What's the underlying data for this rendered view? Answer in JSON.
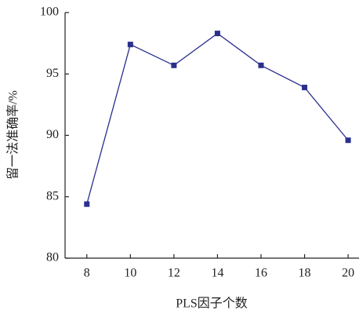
{
  "chart_data": {
    "type": "line",
    "x_label": "PLS因子个数",
    "y_label": "留一法准确率/%",
    "x": [
      8,
      10,
      12,
      14,
      16,
      18,
      20
    ],
    "series": [
      {
        "color": "#2a2f8c",
        "values": [
          84.4,
          97.4,
          95.7,
          98.3,
          95.7,
          93.9,
          89.6
        ]
      }
    ],
    "xlim": [
      7,
      20.5
    ],
    "xticks": [
      8,
      10,
      12,
      14,
      16,
      18,
      20
    ],
    "ylim": [
      80,
      100
    ],
    "yticks": [
      80,
      85,
      90,
      95,
      100
    ]
  }
}
